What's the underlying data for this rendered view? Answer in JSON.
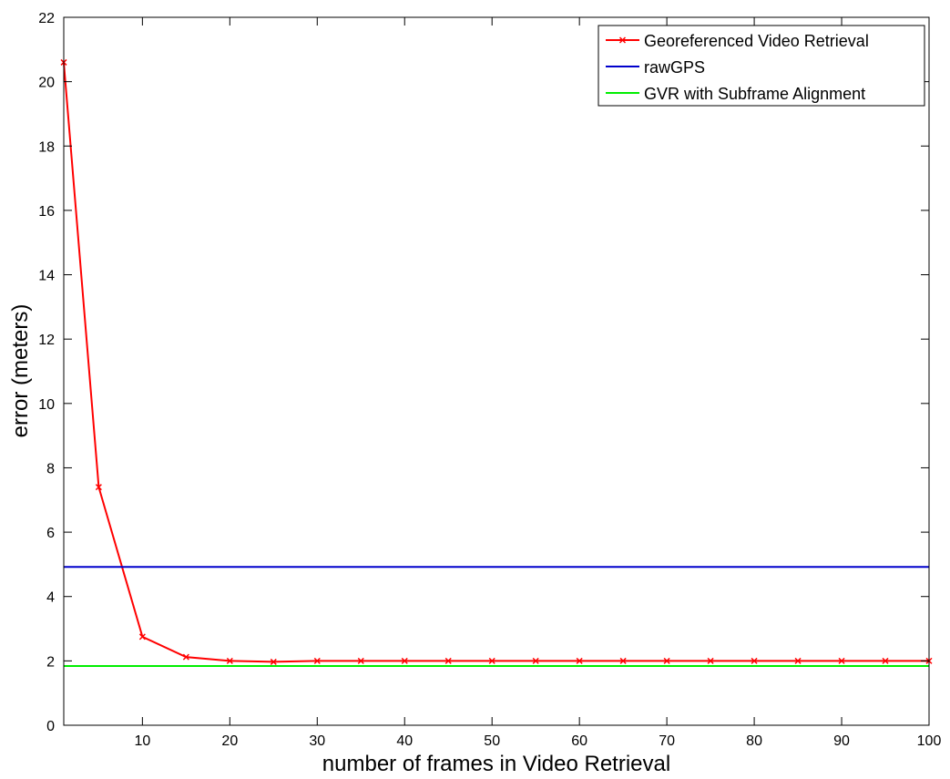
{
  "chart_data": {
    "type": "line",
    "xlabel": "number of frames in Video Retrieval",
    "ylabel": "error (meters)",
    "xlim": [
      1,
      100
    ],
    "ylim": [
      0,
      22
    ],
    "x_ticks": [
      10,
      20,
      30,
      40,
      50,
      60,
      70,
      80,
      90,
      100
    ],
    "y_ticks": [
      0,
      2,
      4,
      6,
      8,
      10,
      12,
      14,
      16,
      18,
      20,
      22
    ],
    "grid": false,
    "legend_position": "top-right",
    "series": [
      {
        "name": "Georeferenced Video Retrieval",
        "color": "#ff0000",
        "marker": "x",
        "x": [
          1,
          5,
          10,
          15,
          20,
          25,
          30,
          35,
          40,
          45,
          50,
          55,
          60,
          65,
          70,
          75,
          80,
          85,
          90,
          95,
          100
        ],
        "y": [
          20.6,
          7.4,
          2.75,
          2.12,
          2.0,
          1.97,
          2.0,
          2.0,
          2.0,
          2.0,
          2.0,
          2.0,
          2.0,
          2.0,
          2.0,
          2.0,
          2.0,
          2.0,
          2.0,
          2.0,
          2.0
        ]
      },
      {
        "name": "rawGPS",
        "color": "#0000cc",
        "marker": "none",
        "x": [
          1,
          100
        ],
        "y": [
          4.92,
          4.92
        ]
      },
      {
        "name": "GVR with Subframe Alignment",
        "color": "#00ee00",
        "marker": "none",
        "x": [
          1,
          100
        ],
        "y": [
          1.84,
          1.84
        ]
      }
    ]
  }
}
